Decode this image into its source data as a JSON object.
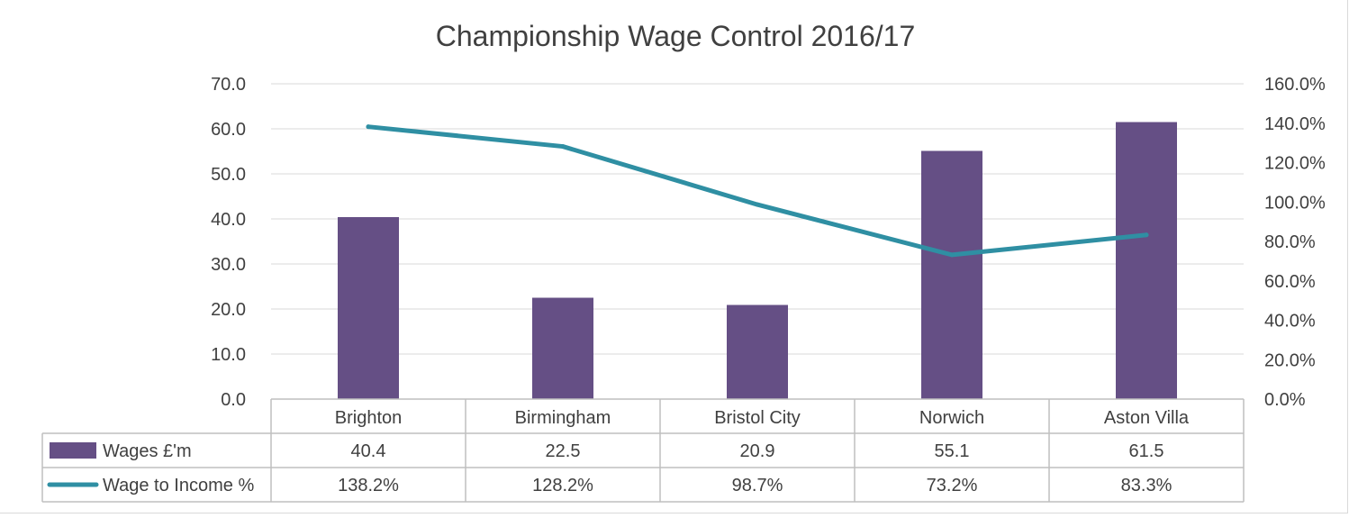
{
  "chart_data": {
    "type": "bar",
    "title": "Championship Wage Control 2016/17",
    "categories": [
      "Brighton",
      "Birmingham",
      "Bristol City",
      "Norwich",
      "Aston Villa"
    ],
    "series": [
      {
        "name": "Wages £'m",
        "kind": "bar",
        "axis": "left",
        "color": "#654f85",
        "values": [
          40.4,
          22.5,
          20.9,
          55.1,
          61.5
        ],
        "labels": [
          "40.4",
          "22.5",
          "20.9",
          "55.1",
          "61.5"
        ]
      },
      {
        "name": "Wage to Income %",
        "kind": "line",
        "axis": "right",
        "color": "#2f8fa3",
        "values": [
          138.2,
          128.2,
          98.7,
          73.2,
          83.3
        ],
        "labels": [
          "138.2%",
          "128.2%",
          "98.7%",
          "73.2%",
          "83.3%"
        ]
      }
    ],
    "ylim": [
      0,
      70
    ],
    "y_ticks": [
      "0.0",
      "10.0",
      "20.0",
      "30.0",
      "40.0",
      "50.0",
      "60.0",
      "70.0"
    ],
    "y2lim": [
      0,
      160
    ],
    "y2_ticks": [
      "0.0%",
      "20.0%",
      "40.0%",
      "60.0%",
      "80.0%",
      "100.0%",
      "120.0%",
      "140.0%",
      "160.0%"
    ],
    "grid": true,
    "legend": "data-table",
    "data_table": true
  }
}
